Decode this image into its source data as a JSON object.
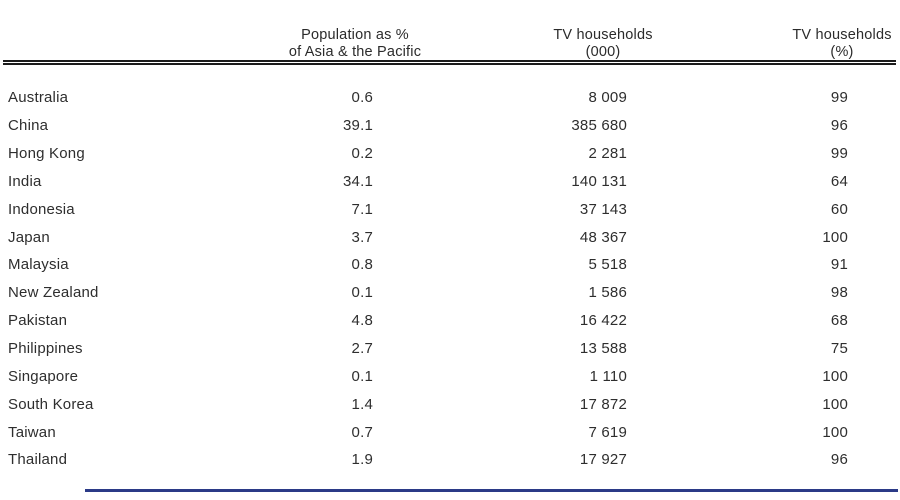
{
  "page": {
    "background_color": "#ffffff",
    "rule_color": "#1b1b1b",
    "bottom_line_color": "#2b3a87"
  },
  "table": {
    "header": {
      "col_country": "",
      "col_population": "Population as %\nof Asia & the Pacific",
      "col_tv_000": "TV households\n(000)",
      "col_tv_pct": "TV households\n(%)"
    },
    "rows": [
      {
        "country": "Australia",
        "population_pct": "0.6",
        "tv_households_000": "8 009",
        "tv_households_pct": "99"
      },
      {
        "country": "China",
        "population_pct": "39.1",
        "tv_households_000": "385 680",
        "tv_households_pct": "96"
      },
      {
        "country": "Hong Kong",
        "population_pct": "0.2",
        "tv_households_000": "2 281",
        "tv_households_pct": "99"
      },
      {
        "country": "India",
        "population_pct": "34.1",
        "tv_households_000": "140 131",
        "tv_households_pct": "64"
      },
      {
        "country": "Indonesia",
        "population_pct": "7.1",
        "tv_households_000": "37 143",
        "tv_households_pct": "60"
      },
      {
        "country": "Japan",
        "population_pct": "3.7",
        "tv_households_000": "48 367",
        "tv_households_pct": "100"
      },
      {
        "country": "Malaysia",
        "population_pct": "0.8",
        "tv_households_000": "5 518",
        "tv_households_pct": "91"
      },
      {
        "country": "New Zealand",
        "population_pct": "0.1",
        "tv_households_000": "1 586",
        "tv_households_pct": "98"
      },
      {
        "country": "Pakistan",
        "population_pct": "4.8",
        "tv_households_000": "16 422",
        "tv_households_pct": "68"
      },
      {
        "country": "Philippines",
        "population_pct": "2.7",
        "tv_households_000": "13 588",
        "tv_households_pct": "75"
      },
      {
        "country": "Singapore",
        "population_pct": "0.1",
        "tv_households_000": "1 110",
        "tv_households_pct": "100"
      },
      {
        "country": "South Korea",
        "population_pct": "1.4",
        "tv_households_000": "17 872",
        "tv_households_pct": "100"
      },
      {
        "country": "Taiwan",
        "population_pct": "0.7",
        "tv_households_000": "7 619",
        "tv_households_pct": "100"
      },
      {
        "country": "Thailand",
        "population_pct": "1.9",
        "tv_households_000": "17 927",
        "tv_households_pct": "96"
      }
    ]
  },
  "chart_data": {
    "type": "table",
    "columns": [
      "",
      "Population as % of Asia & the Pacific",
      "TV households (000)",
      "TV households (%)"
    ],
    "rows": [
      [
        "Australia",
        0.6,
        8009,
        99
      ],
      [
        "China",
        39.1,
        385680,
        96
      ],
      [
        "Hong Kong",
        0.2,
        2281,
        99
      ],
      [
        "India",
        34.1,
        140131,
        64
      ],
      [
        "Indonesia",
        7.1,
        37143,
        60
      ],
      [
        "Japan",
        3.7,
        48367,
        100
      ],
      [
        "Malaysia",
        0.8,
        5518,
        91
      ],
      [
        "New Zealand",
        0.1,
        1586,
        98
      ],
      [
        "Pakistan",
        4.8,
        16422,
        68
      ],
      [
        "Philippines",
        2.7,
        13588,
        75
      ],
      [
        "Singapore",
        0.1,
        1110,
        100
      ],
      [
        "South Korea",
        1.4,
        17872,
        100
      ],
      [
        "Taiwan",
        0.7,
        7619,
        100
      ],
      [
        "Thailand",
        1.9,
        17927,
        96
      ]
    ]
  }
}
